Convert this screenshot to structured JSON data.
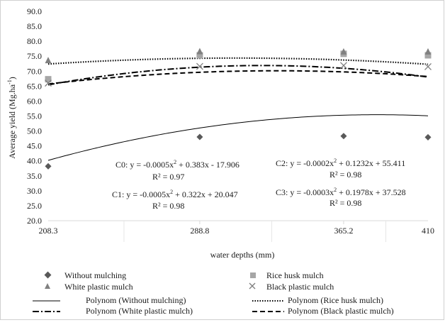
{
  "chart_data": {
    "type": "scatter",
    "title": "",
    "xlabel": "water depths (mm)",
    "ylabel": "Average yield (Mg.ha",
    "ylabel_sup": "-1",
    "ylabel_close": ")",
    "x_tick_labels": [
      "208.3",
      "288.8",
      "365.2",
      "410"
    ],
    "y_tick_labels": [
      "20.0",
      "25.0",
      "30.0",
      "35.0",
      "40.0",
      "45.0",
      "50.0",
      "55.0",
      "60.0",
      "65.0",
      "70.0",
      "75.0",
      "80.0",
      "85.0",
      "90.0"
    ],
    "xlim": [
      208.3,
      410
    ],
    "ylim": [
      20,
      90
    ],
    "grid": "vertical category separators",
    "legend_position": "bottom",
    "x": [
      208.3,
      288.8,
      365.2,
      410
    ],
    "series": [
      {
        "name": "Without mulching",
        "marker": "diamond",
        "color": "#595959",
        "values": [
          38.2,
          48.0,
          48.3,
          47.9
        ]
      },
      {
        "name": "Rice husk mulch",
        "marker": "square",
        "color": "#a6a6a6",
        "values": [
          67.3,
          75.3,
          75.8,
          75.3
        ]
      },
      {
        "name": "White plastic mulch",
        "marker": "triangle",
        "color": "#808080",
        "values": [
          73.6,
          76.6,
          76.5,
          76.5
        ]
      },
      {
        "name": "Black plastic mulch",
        "marker": "cross",
        "color": "#7f7f7f",
        "values": [
          66.0,
          71.6,
          71.9,
          71.5
        ]
      }
    ],
    "trendlines": [
      {
        "name": "Polynom  (Without mulching)",
        "dash": "solid",
        "coef": [
          -17.906,
          0.383,
          -0.0005
        ]
      },
      {
        "name": "Polynom  (Rice husk mulch)",
        "dash": "dotted",
        "coef": [
          55.411,
          0.1232,
          -0.0002
        ]
      },
      {
        "name": "Polynom  (White plastic mulch)",
        "dash": "dashdot",
        "coef": [
          20.047,
          0.322,
          -0.0005
        ]
      },
      {
        "name": "Polynom  (Black plastic mulch)",
        "dash": "dashed",
        "coef": [
          37.528,
          0.1978,
          -0.0003
        ]
      }
    ],
    "annotations": [
      {
        "eq": "C0: y = -0.0005x",
        "sq": "2",
        "rest": " + 0.383x - 17.906",
        "r2": "R² = 0.97"
      },
      {
        "eq": "C1: y = -0.0005x",
        "sq": "2",
        "rest": " + 0.322x + 20.047",
        "r2": "R² = 0.98"
      },
      {
        "eq": "C2: y = -0.0002x",
        "sq": "2",
        "rest": " + 0.1232x + 55.411",
        "r2": "R² = 0.98"
      },
      {
        "eq": "C3: y = -0.0003x",
        "sq": "2",
        "rest": " + 0.1978x + 37.528",
        "r2": "R² = 0.98"
      }
    ]
  }
}
